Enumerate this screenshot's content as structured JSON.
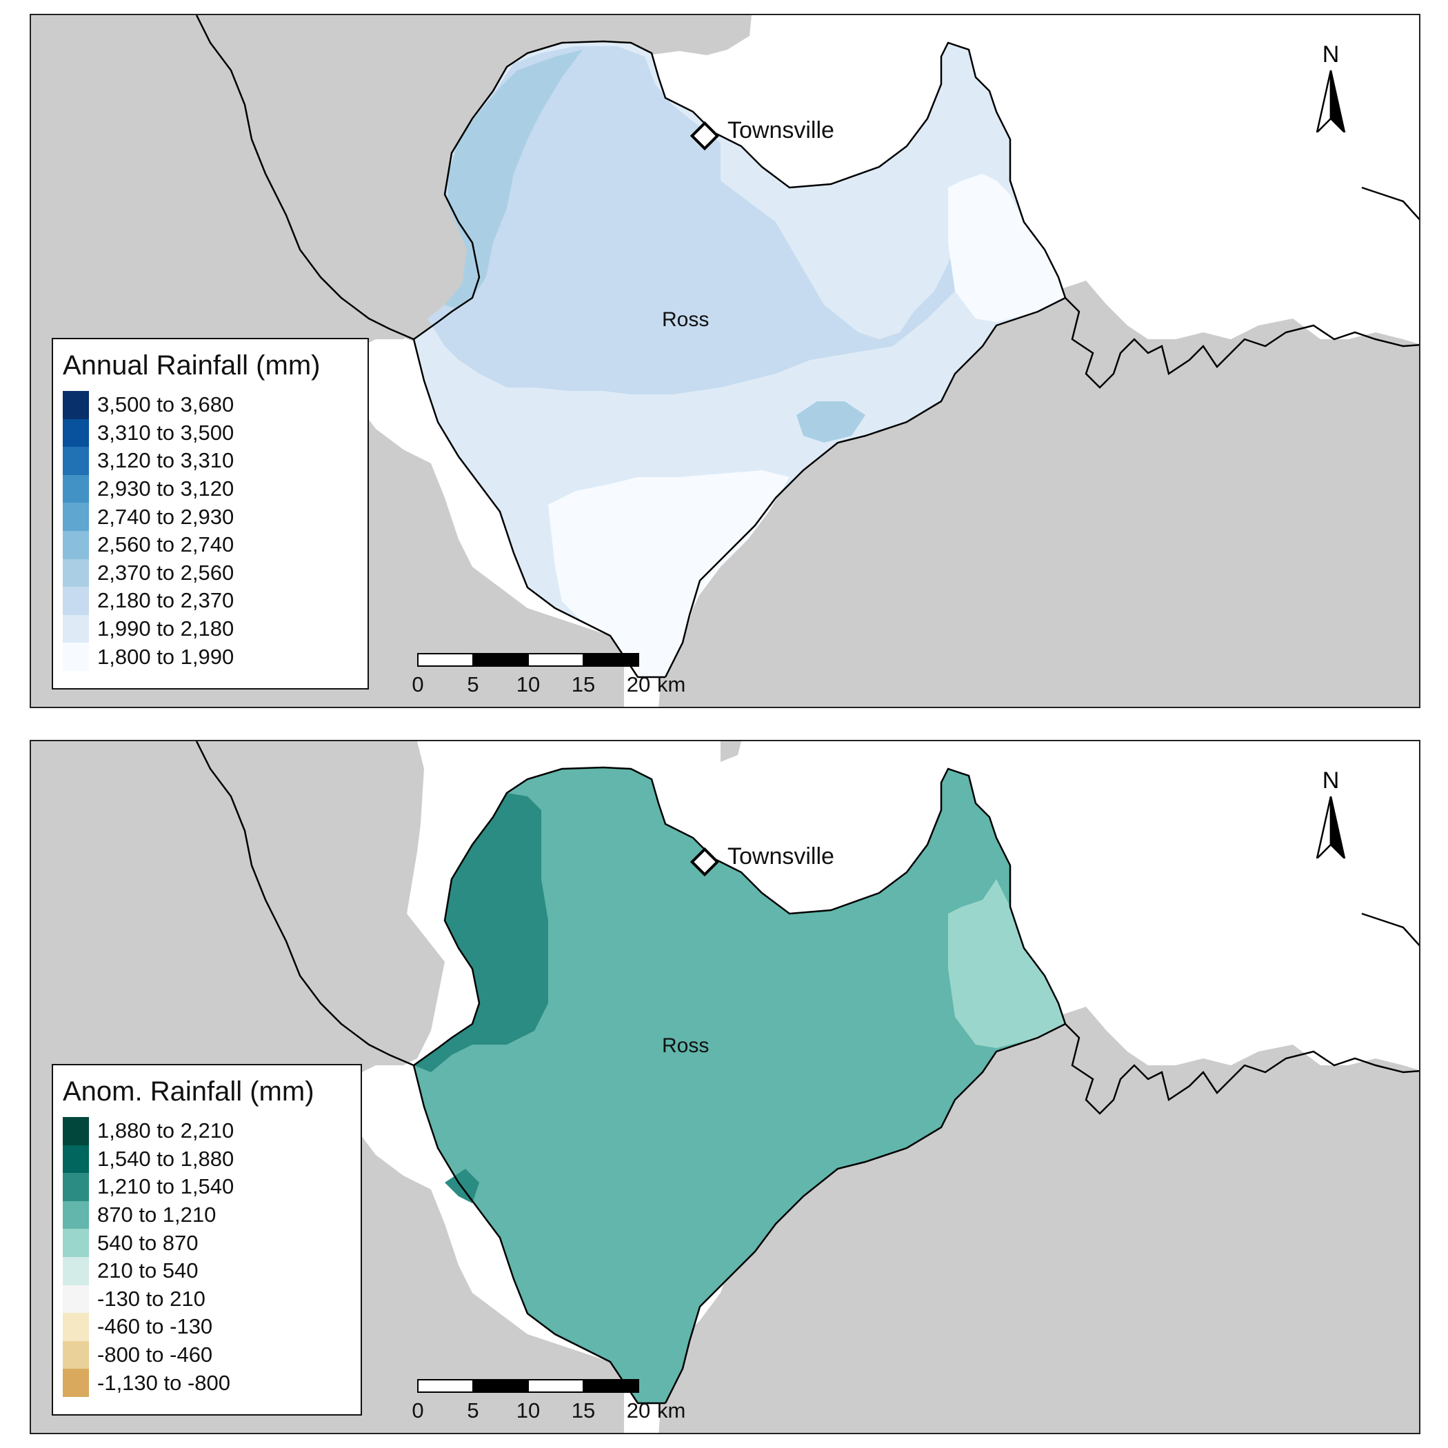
{
  "colors": {
    "land": "#cccccc",
    "sea": "#ffffff",
    "boundary": "#000000"
  },
  "place_labels": {
    "city": "Townsville",
    "region": "Ross"
  },
  "north_arrow_label": "N",
  "scalebar": {
    "ticks": [
      "0",
      "5",
      "10",
      "15",
      "20"
    ],
    "unit": "km"
  },
  "maps": [
    {
      "legend": {
        "title": "Annual Rainfall (mm)",
        "classes": [
          {
            "label": "3,500 to 3,680",
            "color": "#08306b"
          },
          {
            "label": "3,310 to 3,500",
            "color": "#08519c"
          },
          {
            "label": "3,120 to 3,310",
            "color": "#2171b5"
          },
          {
            "label": "2,930 to 3,120",
            "color": "#4292c6"
          },
          {
            "label": "2,740 to 2,930",
            "color": "#5fa6d1"
          },
          {
            "label": "2,560 to 2,740",
            "color": "#89bfdd"
          },
          {
            "label": "2,370 to 2,560",
            "color": "#aacfe5"
          },
          {
            "label": "2,180 to 2,370",
            "color": "#c6dbef"
          },
          {
            "label": "1,990 to 2,180",
            "color": "#deebf7"
          },
          {
            "label": "1,800 to 1,990",
            "color": "#f7fbff"
          }
        ]
      }
    },
    {
      "legend": {
        "title": "Anom. Rainfall (mm)",
        "classes": [
          {
            "label": "1,880 to 2,210",
            "color": "#01473c"
          },
          {
            "label": "1,540 to 1,880",
            "color": "#01665e"
          },
          {
            "label": "1,210 to 1,540",
            "color": "#2b8c83"
          },
          {
            "label": "870 to 1,210",
            "color": "#62b6ab"
          },
          {
            "label": "540 to 870",
            "color": "#9ad6cc"
          },
          {
            "label": "210 to 540",
            "color": "#d3ece8"
          },
          {
            "label": "-130 to 210",
            "color": "#f5f5f5"
          },
          {
            "label": "-460 to -130",
            "color": "#f6e8c3"
          },
          {
            "label": "-800 to -460",
            "color": "#e9d199"
          },
          {
            "label": "-1,130 to -800",
            "color": "#d9aa5e"
          }
        ]
      }
    }
  ]
}
